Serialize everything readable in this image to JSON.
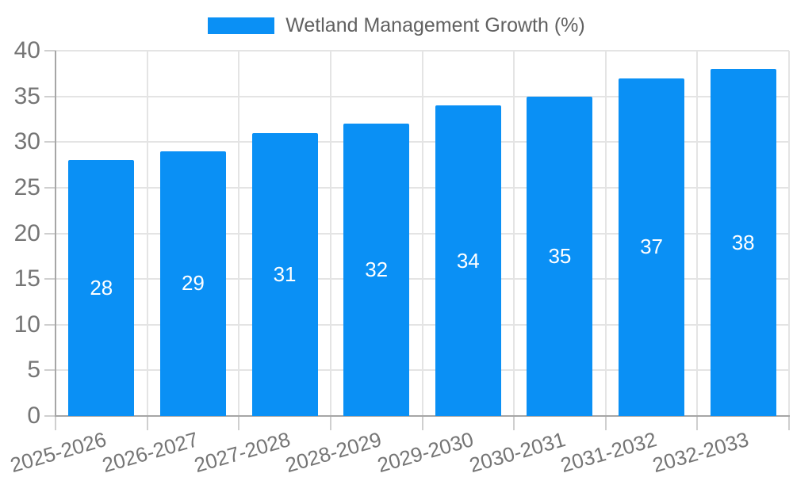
{
  "legend": {
    "label": "Wetland Management Growth (%)"
  },
  "chart_data": {
    "type": "bar",
    "title": "Wetland Management Growth (%)",
    "categories": [
      "2025-2026",
      "2026-2027",
      "2027-2028",
      "2028-2029",
      "2029-2030",
      "2030-2031",
      "2031-2032",
      "2032-2033"
    ],
    "values": [
      28,
      29,
      31,
      32,
      34,
      35,
      37,
      38
    ],
    "xlabel": "",
    "ylabel": "",
    "ylim": [
      0,
      40
    ],
    "yticks": [
      0,
      5,
      10,
      15,
      20,
      25,
      30,
      35,
      40
    ],
    "grid": true,
    "legend_position": "top-center",
    "value_labels_inside_bars": true,
    "x_label_rotation_deg": -16
  },
  "colors": {
    "bar": "#0a90f5",
    "gridline": "#e4e4e4",
    "axis_line": "#a6a6a6",
    "tick_mark": "#cfcfcf",
    "tick_label": "#757575",
    "legend_text": "#616161",
    "value_label": "#ffffff",
    "background": "#ffffff"
  }
}
